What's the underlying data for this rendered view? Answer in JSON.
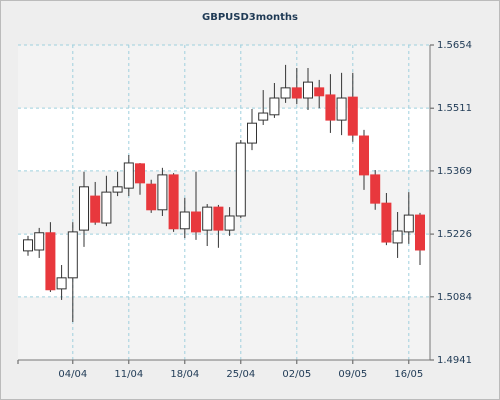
{
  "chart_data": {
    "type": "candlestick",
    "title": "GBPUSD3months",
    "categories": [
      null,
      null,
      null,
      null,
      "04/04",
      null,
      null,
      null,
      null,
      "11/04",
      null,
      null,
      null,
      null,
      "18/04",
      null,
      null,
      null,
      null,
      "25/04",
      null,
      null,
      null,
      null,
      "02/05",
      null,
      null,
      null,
      null,
      "09/05",
      null,
      null,
      null,
      null,
      "16/05",
      null
    ],
    "series": [
      {
        "up_color": "#ffffff",
        "down_color": "#e8383d",
        "open": [
          1.5188,
          1.519,
          1.5229,
          1.5102,
          1.5127,
          1.5235,
          1.5312,
          1.5251,
          1.5321,
          1.533,
          1.5385,
          1.5339,
          1.5281,
          1.536,
          1.5238,
          1.5276,
          1.5235,
          1.5287,
          1.5235,
          1.5267,
          1.5432,
          1.5484,
          1.5496,
          1.5534,
          1.5557,
          1.5534,
          1.5557,
          1.5541,
          1.5484,
          1.5536,
          1.5448,
          1.536,
          1.5296,
          1.5206,
          1.5231,
          1.5269
        ],
        "high": [
          1.5222,
          1.524,
          1.5253,
          1.5156,
          1.5253,
          1.5367,
          1.5344,
          1.5358,
          1.5367,
          1.5405,
          1.5387,
          1.5349,
          1.5376,
          1.5364,
          1.5308,
          1.5367,
          1.5294,
          1.5292,
          1.5287,
          1.5439,
          1.5509,
          1.5552,
          1.5568,
          1.5609,
          1.5602,
          1.5602,
          1.5575,
          1.5588,
          1.5591,
          1.5591,
          1.5462,
          1.5371,
          1.5319,
          1.5276,
          1.5321,
          1.5274
        ],
        "low": [
          1.5177,
          1.5172,
          1.5095,
          1.5077,
          1.5027,
          1.5197,
          1.5247,
          1.5244,
          1.5312,
          1.5312,
          1.5315,
          1.5274,
          1.5267,
          1.5231,
          1.5217,
          1.5213,
          1.5199,
          1.5195,
          1.5222,
          1.5262,
          1.5416,
          1.5473,
          1.5489,
          1.5523,
          1.552,
          1.5507,
          1.5511,
          1.5455,
          1.545,
          1.5435,
          1.5326,
          1.5281,
          1.5201,
          1.5172,
          1.5204,
          1.5156
        ],
        "close": [
          1.5213,
          1.5229,
          1.51,
          1.5127,
          1.5231,
          1.5333,
          1.5253,
          1.5321,
          1.5333,
          1.5387,
          1.5342,
          1.5281,
          1.536,
          1.5238,
          1.5276,
          1.5231,
          1.5287,
          1.5235,
          1.5267,
          1.5432,
          1.5477,
          1.55,
          1.5534,
          1.5557,
          1.5534,
          1.557,
          1.5539,
          1.5484,
          1.5534,
          1.545,
          1.536,
          1.5296,
          1.5208,
          1.5233,
          1.5269,
          1.519
        ]
      }
    ],
    "ylim": [
      1.4941,
      1.5654
    ],
    "yticks": [
      1.4941,
      1.5084,
      1.5226,
      1.5369,
      1.5511,
      1.5654
    ],
    "y_axis_side": "right",
    "grid": true
  }
}
